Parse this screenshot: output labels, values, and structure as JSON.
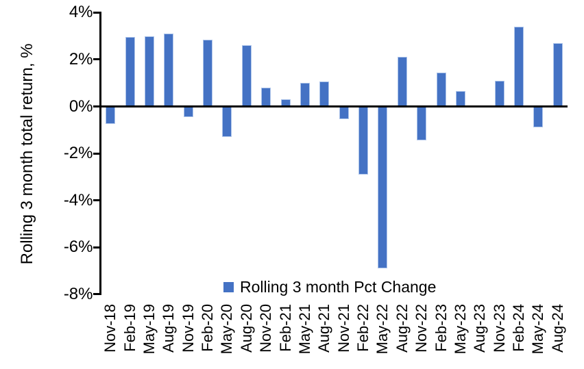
{
  "chart_data": {
    "type": "bar",
    "title": "",
    "xlabel": "",
    "ylabel": "Rolling 3 month total return, %",
    "categories": [
      "Nov-18",
      "Feb-19",
      "May-19",
      "Aug-19",
      "Nov-19",
      "Feb-20",
      "May-20",
      "Aug-20",
      "Nov-20",
      "Feb-21",
      "May-21",
      "Aug-21",
      "Nov-21",
      "Feb-22",
      "May-22",
      "Aug-22",
      "Nov-22",
      "Feb-23",
      "May-23",
      "Aug-23",
      "Nov-23",
      "Feb-24",
      "May-24",
      "Aug-24"
    ],
    "values": [
      -0.75,
      2.95,
      3.0,
      3.1,
      -0.45,
      2.85,
      -1.3,
      2.6,
      0.8,
      0.3,
      1.0,
      1.05,
      -0.55,
      -2.9,
      -6.9,
      2.1,
      -1.45,
      1.45,
      0.65,
      0.0,
      1.1,
      3.4,
      -0.9,
      2.7
    ],
    "y_ticks": [
      {
        "label": "4%",
        "value": 4
      },
      {
        "label": "2%",
        "value": 2
      },
      {
        "label": "0%",
        "value": 0
      },
      {
        "label": "-2%",
        "value": -2
      },
      {
        "label": "-4%",
        "value": -4
      },
      {
        "label": "-6%",
        "value": -6
      },
      {
        "label": "-8%",
        "value": -8
      }
    ],
    "ylim": [
      -8,
      4
    ],
    "grid": "off",
    "legend": {
      "label": "Rolling 3 month Pct Change",
      "position": "bottom-center",
      "marker": "square"
    },
    "colors": {
      "bar_fill": "#4472C4",
      "bar_border": "#AEC5EA",
      "axis": "#000000",
      "text": "#000000",
      "background": "#FFFFFF"
    }
  }
}
